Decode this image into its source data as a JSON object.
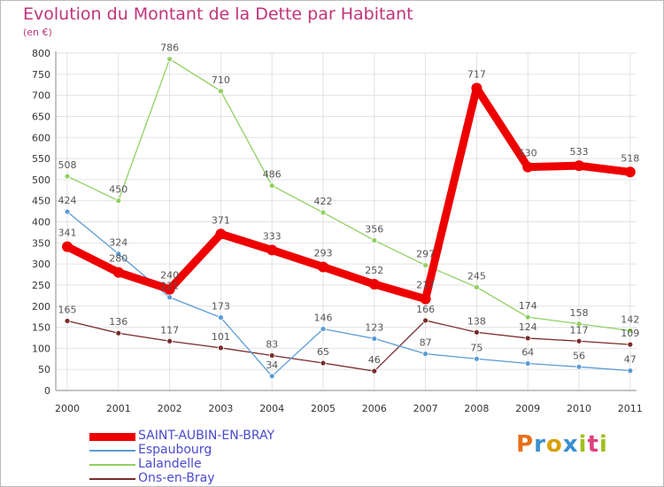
{
  "title": "Evolution du Montant de la Dette par Habitant",
  "subtitle": "(en €)",
  "logo": {
    "text": "Proxiti",
    "letter_colors": [
      "#e8701a",
      "#3a8fd0",
      "#d9a000",
      "#3a8fd0",
      "#a0c020",
      "#e04080",
      "#a0c020"
    ]
  },
  "chart_data": {
    "type": "line",
    "title": "Evolution du Montant de la Dette par Habitant",
    "ylabel": "(en €)",
    "xlabel": "",
    "x": [
      "2000",
      "2001",
      "2002",
      "2003",
      "2004",
      "2005",
      "2006",
      "2007",
      "2008",
      "2009",
      "2010",
      "2011"
    ],
    "ylim": [
      0,
      800
    ],
    "yticks": [
      0,
      50,
      100,
      150,
      200,
      250,
      300,
      350,
      400,
      450,
      500,
      550,
      600,
      650,
      700,
      750,
      800
    ],
    "grid": true,
    "legend_position": "bottom-left",
    "series": [
      {
        "name": "SAINT-AUBIN-EN-BRAY",
        "color": "#ee0000",
        "values": [
          341,
          280,
          240,
          371,
          333,
          293,
          252,
          217,
          717,
          530,
          533,
          518
        ]
      },
      {
        "name": "Espaubourg",
        "color": "#5a9bd6",
        "values": [
          424,
          324,
          221,
          173,
          34,
          146,
          123,
          87,
          75,
          64,
          56,
          47
        ]
      },
      {
        "name": "Lalandelle",
        "color": "#90d060",
        "values": [
          508,
          450,
          786,
          710,
          486,
          422,
          356,
          297,
          245,
          174,
          158,
          142
        ]
      },
      {
        "name": "Ons-en-Bray",
        "color": "#7a2a2a",
        "values": [
          165,
          136,
          117,
          101,
          83,
          65,
          46,
          166,
          138,
          124,
          117,
          109
        ]
      }
    ]
  }
}
